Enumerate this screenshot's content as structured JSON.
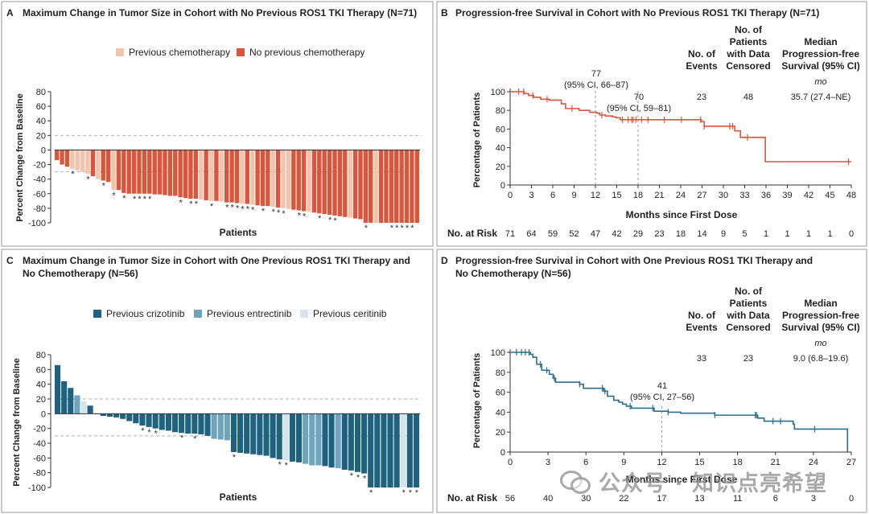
{
  "panels": {
    "A": {
      "letter": "A",
      "title": "Maximum Change in Tumor Size in Cohort with No Previous ROS1 TKI Therapy (N=71)",
      "legend": [
        {
          "label": "Previous chemotherapy",
          "color": "#f2c4ae"
        },
        {
          "label": "No previous chemotherapy",
          "color": "#d9553b"
        }
      ],
      "ylabel": "Percent Change from Baseline",
      "xlabel": "Patients"
    },
    "B": {
      "letter": "B",
      "title": "Progression-free Survival in Cohort with No Previous ROS1 TKI Therapy (N=71)",
      "ylabel": "Percentage of Patients",
      "xlabel": "Months since First Dose",
      "header_events": [
        "No. of",
        "Events"
      ],
      "header_censored": [
        "No. of",
        "Patients",
        "with Data",
        "Censored"
      ],
      "header_median": [
        "Median",
        "Progression-free",
        "Survival (95% CI)"
      ],
      "unit": "mo",
      "events": "23",
      "censored": "48",
      "median": "35.7 (27.4–NE)",
      "annot1": [
        "77",
        "(95% CI, 66–87)"
      ],
      "annot2": [
        "70",
        "(95% CI, 59–81)"
      ],
      "at_risk_label": "No. at Risk",
      "at_risk": [
        "71",
        "64",
        "59",
        "52",
        "47",
        "42",
        "29",
        "23",
        "18",
        "14",
        "9",
        "5",
        "1",
        "1",
        "1",
        "1",
        "0"
      ]
    },
    "C": {
      "letter": "C",
      "title": [
        "Maximum Change in Tumor Size in Cohort with One Previous ROS1 TKI Therapy and",
        "No Chemotherapy (N=56)"
      ],
      "legend": [
        {
          "label": "Previous crizotinib",
          "color": "#1f6280"
        },
        {
          "label": "Previous entrectinib",
          "color": "#6ea5bd"
        },
        {
          "label": "Previous ceritinib",
          "color": "#d4e4ec"
        }
      ],
      "ylabel": "Percent Change from Baseline",
      "xlabel": "Patients"
    },
    "D": {
      "letter": "D",
      "title": [
        "Progression-free Survival in Cohort with One Previous ROS1 TKI Therapy and",
        "No Chemotherapy (N=56)"
      ],
      "ylabel": "Percentage of Patients",
      "xlabel": "Months since First Dose",
      "header_events": [
        "No. of",
        "Events"
      ],
      "header_censored": [
        "No. of",
        "Patients",
        "with Data",
        "Censored"
      ],
      "header_median": [
        "Median",
        "Progression-free",
        "Survival (95% CI)"
      ],
      "unit": "mo",
      "events": "33",
      "censored": "23",
      "median": "9.0 (6.8–19.6)",
      "annot1": [
        "41",
        "(95% CI, 27–56)"
      ],
      "at_risk_label": "No. at Risk",
      "at_risk": [
        "56",
        "40",
        "30",
        "22",
        "17",
        "13",
        "11",
        "6",
        "3",
        "0"
      ]
    }
  },
  "watermark": "公众号 · 知识点亮希望",
  "chart_data": [
    {
      "type": "bar",
      "panel": "A",
      "ylim": [
        -100,
        80
      ],
      "yticks": [
        -100,
        -80,
        -60,
        -40,
        -20,
        0,
        20,
        40,
        60,
        80
      ],
      "reference_lines": [
        20,
        -30
      ],
      "series": [
        {
          "name": "Previous chemotherapy",
          "color": "#f2c4ae"
        },
        {
          "name": "No previous chemotherapy",
          "color": "#d9553b"
        }
      ],
      "values": [
        -14,
        -20,
        -23,
        -26,
        -28,
        -30,
        -33,
        -36,
        -40,
        -42,
        -44,
        -55,
        -55,
        -59,
        -60,
        -60,
        -60,
        -60,
        -60,
        -61,
        -61,
        -62,
        -63,
        -63,
        -65,
        -66,
        -67,
        -67,
        -68,
        -69,
        -70,
        -70,
        -71,
        -72,
        -72,
        -73,
        -74,
        -74,
        -75,
        -76,
        -77,
        -77,
        -78,
        -79,
        -80,
        -81,
        -82,
        -83,
        -84,
        -85,
        -86,
        -87,
        -88,
        -89,
        -90,
        -91,
        -92,
        -93,
        -94,
        -95,
        -100,
        -100,
        -100,
        -100,
        -100,
        -100,
        -100,
        -100,
        -100,
        -100,
        -100
      ],
      "series_index": [
        1,
        1,
        1,
        0,
        0,
        0,
        0,
        1,
        0,
        1,
        1,
        0,
        1,
        1,
        1,
        1,
        1,
        1,
        1,
        1,
        1,
        1,
        1,
        1,
        1,
        1,
        1,
        1,
        0,
        1,
        0,
        1,
        0,
        1,
        1,
        1,
        0,
        1,
        0,
        1,
        1,
        1,
        0,
        1,
        0,
        0,
        1,
        1,
        1,
        0,
        1,
        1,
        1,
        1,
        1,
        1,
        1,
        0,
        1,
        1,
        1,
        1,
        0,
        1,
        1,
        1,
        1,
        1,
        1,
        1,
        1
      ],
      "asterisk": [
        false,
        false,
        false,
        true,
        false,
        false,
        true,
        false,
        false,
        true,
        false,
        true,
        false,
        true,
        false,
        true,
        true,
        true,
        true,
        false,
        false,
        false,
        false,
        false,
        true,
        false,
        true,
        true,
        false,
        false,
        true,
        false,
        false,
        true,
        true,
        true,
        true,
        true,
        true,
        false,
        true,
        false,
        true,
        true,
        true,
        false,
        false,
        true,
        true,
        false,
        false,
        true,
        false,
        true,
        true,
        false,
        false,
        false,
        false,
        false,
        true,
        false,
        false,
        false,
        false,
        true,
        true,
        true,
        true,
        true,
        false
      ]
    },
    {
      "type": "line",
      "panel": "B",
      "xlim": [
        0,
        48
      ],
      "ylim": [
        0,
        100
      ],
      "xticks": [
        0,
        3,
        6,
        9,
        12,
        15,
        18,
        21,
        24,
        27,
        30,
        33,
        36,
        39,
        42,
        45,
        48
      ],
      "yticks": [
        0,
        20,
        40,
        60,
        80,
        100
      ],
      "color": "#d9553b",
      "steps": [
        [
          0,
          100
        ],
        [
          2,
          98
        ],
        [
          2.6,
          96
        ],
        [
          3.3,
          94
        ],
        [
          4.3,
          92
        ],
        [
          5.5,
          91
        ],
        [
          7.2,
          87
        ],
        [
          7.8,
          82
        ],
        [
          9.7,
          80
        ],
        [
          11.2,
          78
        ],
        [
          12.2,
          77
        ],
        [
          12.6,
          75
        ],
        [
          13.4,
          74
        ],
        [
          14.4,
          73
        ],
        [
          14.9,
          72
        ],
        [
          15.5,
          70
        ],
        [
          17,
          70
        ],
        [
          24.3,
          70
        ],
        [
          26.9,
          68
        ],
        [
          27.3,
          63
        ],
        [
          31.2,
          63
        ],
        [
          31.6,
          58
        ],
        [
          32.4,
          51
        ],
        [
          35.7,
          51
        ],
        [
          35.9,
          25
        ],
        [
          48,
          25
        ]
      ],
      "censor_x": [
        1.2,
        1.9,
        3.2,
        5.2,
        8.7,
        12.9,
        15.8,
        16.6,
        17.1,
        17.3,
        17.7,
        18.5,
        19.4,
        21.7,
        24.1,
        26.8,
        27.3,
        30.9,
        31.3,
        33.4,
        47.6
      ],
      "landmarks": [
        12,
        18
      ]
    },
    {
      "type": "bar",
      "panel": "C",
      "ylim": [
        -100,
        80
      ],
      "yticks": [
        -100,
        -80,
        -60,
        -40,
        -20,
        0,
        20,
        40,
        60,
        80
      ],
      "reference_lines": [
        20,
        -30
      ],
      "series": [
        {
          "name": "Previous crizotinib",
          "color": "#1f6280"
        },
        {
          "name": "Previous entrectinib",
          "color": "#6ea5bd"
        },
        {
          "name": "Previous ceritinib",
          "color": "#d4e4ec"
        }
      ],
      "values": [
        66,
        44,
        35,
        25,
        17,
        11,
        0,
        -3,
        -4,
        -5,
        -7,
        -10,
        -13,
        -16,
        -18,
        -20,
        -22,
        -23,
        -25,
        -26,
        -27,
        -27,
        -28,
        -30,
        -34,
        -35,
        -36,
        -52,
        -53,
        -54,
        -55,
        -56,
        -57,
        -60,
        -62,
        -63,
        -65,
        -66,
        -68,
        -70,
        -70,
        -71,
        -73,
        -74,
        -76,
        -77,
        -79,
        -81,
        -100,
        -100,
        -100,
        -100,
        -100,
        -100,
        -100,
        -100
      ],
      "series_index": [
        0,
        0,
        0,
        1,
        2,
        0,
        0,
        0,
        0,
        0,
        0,
        0,
        0,
        0,
        0,
        0,
        0,
        0,
        0,
        0,
        0,
        0,
        0,
        0,
        1,
        1,
        1,
        0,
        0,
        0,
        0,
        0,
        0,
        0,
        0,
        2,
        0,
        0,
        1,
        1,
        1,
        0,
        0,
        1,
        0,
        0,
        0,
        0,
        0,
        0,
        0,
        0,
        0,
        2,
        0,
        0
      ],
      "asterisk": [
        false,
        false,
        false,
        false,
        false,
        false,
        false,
        false,
        false,
        false,
        false,
        false,
        false,
        true,
        true,
        true,
        false,
        false,
        false,
        true,
        false,
        true,
        false,
        false,
        false,
        false,
        false,
        true,
        false,
        false,
        false,
        false,
        false,
        false,
        true,
        true,
        false,
        false,
        false,
        false,
        false,
        false,
        false,
        false,
        false,
        true,
        true,
        true,
        true,
        false,
        false,
        false,
        false,
        true,
        true,
        true
      ]
    },
    {
      "type": "line",
      "panel": "D",
      "xlim": [
        0,
        27
      ],
      "ylim": [
        0,
        100
      ],
      "xticks": [
        0,
        3,
        6,
        9,
        12,
        15,
        18,
        21,
        24,
        27
      ],
      "yticks": [
        0,
        20,
        40,
        60,
        80,
        100
      ],
      "color": "#2a6f8e",
      "steps": [
        [
          0,
          100
        ],
        [
          1.6,
          98
        ],
        [
          1.8,
          95
        ],
        [
          2.1,
          88
        ],
        [
          2.5,
          82
        ],
        [
          3.1,
          78
        ],
        [
          3.4,
          74
        ],
        [
          3.6,
          70
        ],
        [
          5.5,
          68
        ],
        [
          5.8,
          64
        ],
        [
          7.4,
          61
        ],
        [
          7.7,
          56
        ],
        [
          8.2,
          52
        ],
        [
          8.6,
          50
        ],
        [
          8.9,
          48
        ],
        [
          9.2,
          46
        ],
        [
          9.6,
          44
        ],
        [
          11.4,
          41
        ],
        [
          12.5,
          40
        ],
        [
          13.5,
          39
        ],
        [
          16.2,
          37
        ],
        [
          19.6,
          34
        ],
        [
          20.1,
          31
        ],
        [
          22.4,
          28
        ],
        [
          22.5,
          23
        ],
        [
          26.7,
          23
        ],
        [
          26.7,
          0
        ]
      ],
      "censor_x": [
        0.5,
        0.9,
        1.2,
        1.5,
        2.4,
        2.9,
        3.5,
        5.5,
        7.3,
        7.5,
        9.5,
        11.3,
        12.5,
        16.2,
        19.4,
        19.5,
        20.8,
        21.4,
        24.1
      ],
      "landmarks": [
        12
      ]
    }
  ]
}
